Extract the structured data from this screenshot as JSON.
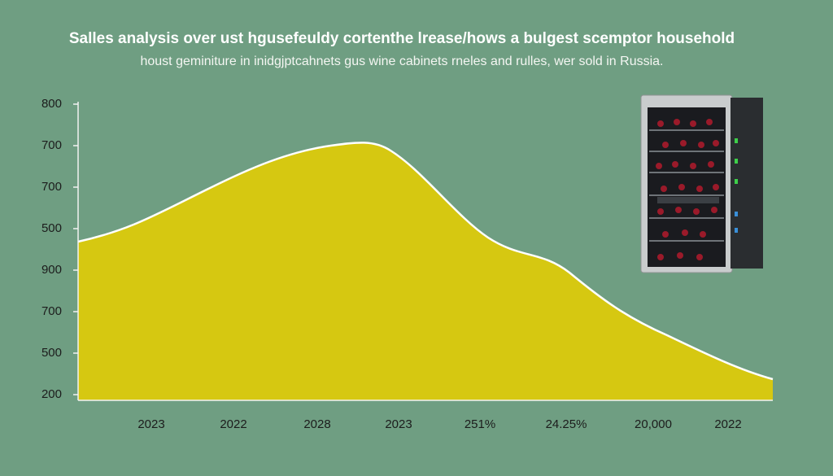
{
  "header": {
    "title": "Salles analysis over ust hgusefeuldy cortenthe lrease/hows a bulgest scemptor household",
    "subtitle": "houst geminiture in inidgjptcahnets gus wine cabinets rneles and rulles, wer sold in Russia."
  },
  "y_axis_labels": [
    "800",
    "700",
    "700",
    "500",
    "900",
    "700",
    "500",
    "200"
  ],
  "x_axis_labels": [
    "2023",
    "2022",
    "2028",
    "2023",
    "251%",
    "24.25%",
    "20,000",
    "2022"
  ]
}
